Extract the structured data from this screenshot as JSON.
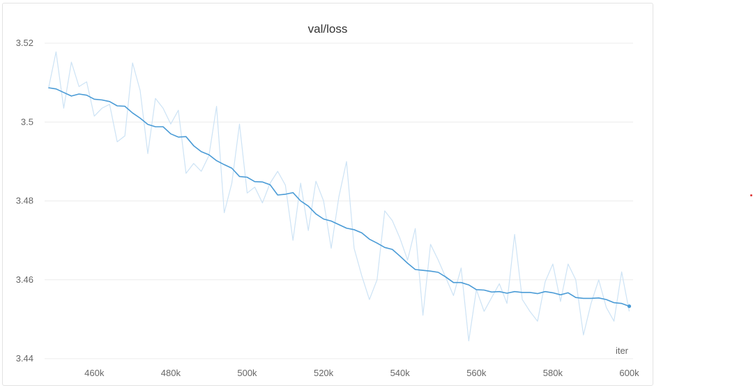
{
  "chart_data": {
    "type": "line",
    "title": "val/loss",
    "xlabel": "iter",
    "ylabel": "",
    "xlim": [
      447000,
      601000
    ],
    "ylim": [
      3.44,
      3.52
    ],
    "x_ticks": [
      460000,
      480000,
      500000,
      520000,
      540000,
      560000,
      580000,
      600000
    ],
    "x_tick_labels": [
      "460k",
      "480k",
      "500k",
      "520k",
      "540k",
      "560k",
      "580k",
      "600k"
    ],
    "y_ticks": [
      3.44,
      3.46,
      3.48,
      3.5,
      3.52
    ],
    "y_tick_labels": [
      "3.44",
      "3.46",
      "3.48",
      "3.5",
      "3.52"
    ],
    "grid": true,
    "colors": {
      "smoothed": "#4a9bd6",
      "raw": "#cde3f5",
      "grid": "#ececec",
      "tick_text": "#666666"
    },
    "series": [
      {
        "role": "raw",
        "x": [
          448000,
          450000,
          452000,
          454000,
          456000,
          458000,
          460000,
          462000,
          464000,
          466000,
          468000,
          470000,
          472000,
          474000,
          476000,
          478000,
          480000,
          482000,
          484000,
          486000,
          488000,
          490000,
          492000,
          494000,
          496000,
          498000,
          500000,
          502000,
          504000,
          506000,
          508000,
          510000,
          512000,
          514000,
          516000,
          518000,
          520000,
          522000,
          524000,
          526000,
          528000,
          530000,
          532000,
          534000,
          536000,
          538000,
          540000,
          542000,
          544000,
          546000,
          548000,
          550000,
          552000,
          554000,
          556000,
          558000,
          560000,
          562000,
          564000,
          566000,
          568000,
          570000,
          572000,
          574000,
          576000,
          578000,
          580000,
          582000,
          584000,
          586000,
          588000,
          590000,
          592000,
          594000,
          596000,
          598000,
          600000
        ],
        "values": [
          3.5085,
          3.5178,
          3.5035,
          3.5152,
          3.509,
          3.5102,
          3.5015,
          3.5035,
          3.5045,
          3.495,
          3.4965,
          3.515,
          3.508,
          3.492,
          3.506,
          3.5035,
          3.4995,
          3.503,
          3.487,
          3.4895,
          3.4875,
          3.4915,
          3.504,
          3.477,
          3.4845,
          3.4995,
          3.482,
          3.4835,
          3.4795,
          3.4845,
          3.4875,
          3.484,
          3.47,
          3.4845,
          3.4725,
          3.485,
          3.48,
          3.468,
          3.481,
          3.49,
          3.468,
          3.461,
          3.455,
          3.46,
          3.4775,
          3.475,
          3.4705,
          3.465,
          3.473,
          3.451,
          3.469,
          3.465,
          3.4605,
          3.456,
          3.463,
          3.4445,
          3.4575,
          3.452,
          3.4555,
          3.459,
          3.454,
          3.4715,
          3.455,
          3.452,
          3.4495,
          3.4595,
          3.464,
          3.4545,
          3.464,
          3.46,
          3.446,
          3.454,
          3.46,
          3.453,
          3.4495,
          3.462,
          3.452
        ]
      },
      {
        "role": "smoothed",
        "x": [
          448000,
          450000,
          452000,
          454000,
          456000,
          458000,
          460000,
          462000,
          464000,
          466000,
          468000,
          470000,
          472000,
          474000,
          476000,
          478000,
          480000,
          482000,
          484000,
          486000,
          488000,
          490000,
          492000,
          494000,
          496000,
          498000,
          500000,
          502000,
          504000,
          506000,
          508000,
          510000,
          512000,
          514000,
          516000,
          518000,
          520000,
          522000,
          524000,
          526000,
          528000,
          530000,
          532000,
          534000,
          536000,
          538000,
          540000,
          542000,
          544000,
          546000,
          548000,
          550000,
          552000,
          554000,
          556000,
          558000,
          560000,
          562000,
          564000,
          566000,
          568000,
          570000,
          572000,
          574000,
          576000,
          578000,
          580000,
          582000,
          584000,
          586000,
          588000,
          590000,
          592000,
          594000,
          596000,
          598000,
          600000
        ],
        "values": [
          3.5087,
          3.5084,
          3.5075,
          3.5066,
          3.5071,
          3.5068,
          3.5058,
          3.5056,
          3.5052,
          3.5041,
          3.504,
          3.5023,
          3.501,
          3.4994,
          3.4988,
          3.4988,
          3.497,
          3.4962,
          3.4963,
          3.494,
          3.4925,
          3.4917,
          3.4902,
          3.4892,
          3.4883,
          3.4862,
          3.486,
          3.4849,
          3.4848,
          3.4841,
          3.4815,
          3.4817,
          3.4821,
          3.48,
          3.4787,
          3.4767,
          3.4754,
          3.4749,
          3.474,
          3.4731,
          3.4727,
          3.4719,
          3.4703,
          3.4693,
          3.4682,
          3.4677,
          3.466,
          3.4642,
          3.4626,
          3.4624,
          3.4622,
          3.4619,
          3.4607,
          3.4593,
          3.4593,
          3.4587,
          3.4575,
          3.4574,
          3.4569,
          3.457,
          3.4566,
          3.457,
          3.4568,
          3.4568,
          3.4565,
          3.457,
          3.4567,
          3.4562,
          3.4567,
          3.4555,
          3.4553,
          3.4553,
          3.4554,
          3.455,
          3.4542,
          3.454,
          3.4533
        ]
      }
    ]
  }
}
